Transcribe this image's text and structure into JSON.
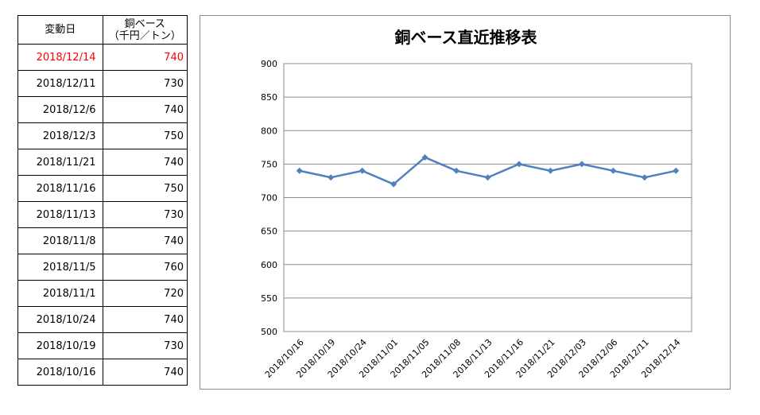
{
  "table": {
    "header_date": "変動日",
    "header_price_line1": "銅ベース",
    "header_price_line2": "（千円／トン）",
    "rows": [
      {
        "date": "2018/12/14",
        "price": "740",
        "highlight": true
      },
      {
        "date": "2018/12/11",
        "price": "730"
      },
      {
        "date": "2018/12/6",
        "price": "740"
      },
      {
        "date": "2018/12/3",
        "price": "750"
      },
      {
        "date": "2018/11/21",
        "price": "740"
      },
      {
        "date": "2018/11/16",
        "price": "750"
      },
      {
        "date": "2018/11/13",
        "price": "730"
      },
      {
        "date": "2018/11/8",
        "price": "740"
      },
      {
        "date": "2018/11/5",
        "price": "760"
      },
      {
        "date": "2018/11/1",
        "price": "720"
      },
      {
        "date": "2018/10/24",
        "price": "740"
      },
      {
        "date": "2018/10/19",
        "price": "730"
      },
      {
        "date": "2018/10/16",
        "price": "740"
      }
    ],
    "highlight_color": "#ff0000"
  },
  "chart_data": {
    "type": "line",
    "title": "銅ベース直近推移表",
    "xlabel": "",
    "ylabel": "",
    "categories": [
      "2018/10/16",
      "2018/10/19",
      "2018/10/24",
      "2018/11/01",
      "2018/11/05",
      "2018/11/08",
      "2018/11/13",
      "2018/11/16",
      "2018/11/21",
      "2018/12/03",
      "2018/12/06",
      "2018/12/11",
      "2018/12/14"
    ],
    "series": [
      {
        "values": [
          740,
          730,
          740,
          720,
          760,
          740,
          730,
          750,
          740,
          750,
          740,
          730,
          740
        ],
        "color": "#4f81bd"
      }
    ],
    "ylim": [
      500,
      900
    ],
    "yticks": [
      500,
      550,
      600,
      650,
      700,
      750,
      800,
      850,
      900
    ],
    "grid": true,
    "legend": "none"
  }
}
